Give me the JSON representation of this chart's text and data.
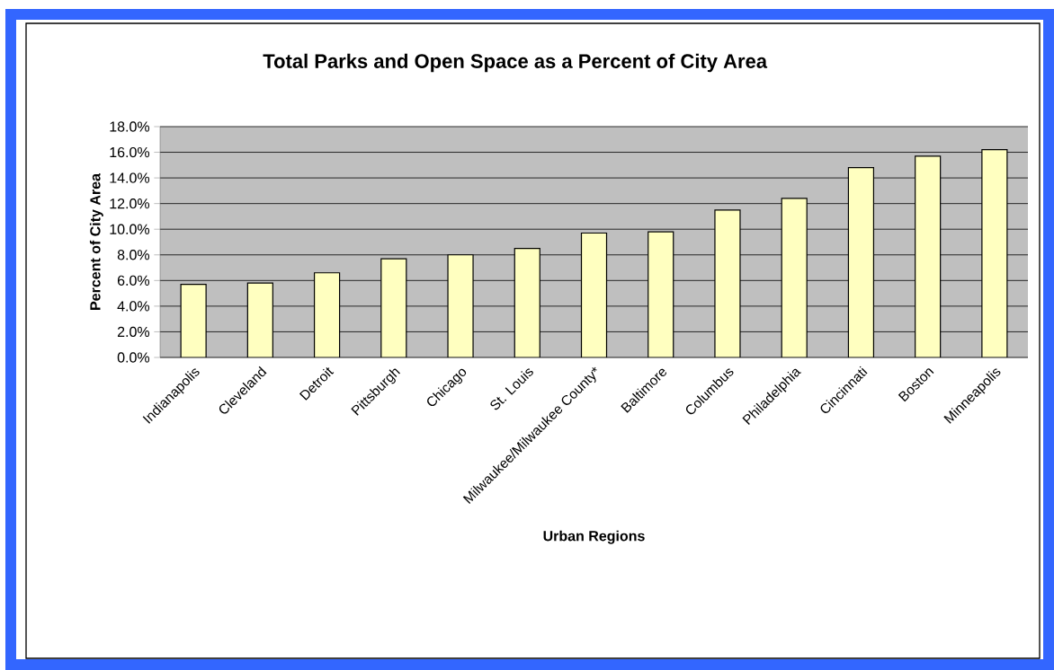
{
  "chart_data": {
    "type": "bar",
    "title": "Total Parks and Open Space as a Percent of City Area",
    "xlabel": "Urban Regions",
    "ylabel": "Percent of City Area",
    "categories": [
      "Indianapolis",
      "Cleveland",
      "Detroit",
      "Pittsburgh",
      "Chicago",
      "St. Louis",
      "Milwaukee/Milwaukee County*",
      "Baltimore",
      "Columbus",
      "Philadelphia",
      "Cincinnati",
      "Boston",
      "Minneapolis"
    ],
    "values": [
      5.7,
      5.8,
      6.6,
      7.7,
      8.0,
      8.5,
      9.7,
      9.8,
      11.5,
      12.4,
      14.8,
      15.7,
      16.2
    ],
    "color": "#ffffc0",
    "ylim": [
      0,
      18
    ],
    "yticks": [
      {
        "value": 0,
        "label": "0.0%"
      },
      {
        "value": 2,
        "label": "2.0%"
      },
      {
        "value": 4,
        "label": "4.0%"
      },
      {
        "value": 6,
        "label": "6.0%"
      },
      {
        "value": 8,
        "label": "8.0%"
      },
      {
        "value": 10,
        "label": "10.0%"
      },
      {
        "value": 12,
        "label": "12.0%"
      },
      {
        "value": 14,
        "label": "14.0%"
      },
      {
        "value": 16,
        "label": "16.0%"
      },
      {
        "value": 18,
        "label": "18.0%"
      }
    ],
    "grid": "y"
  }
}
